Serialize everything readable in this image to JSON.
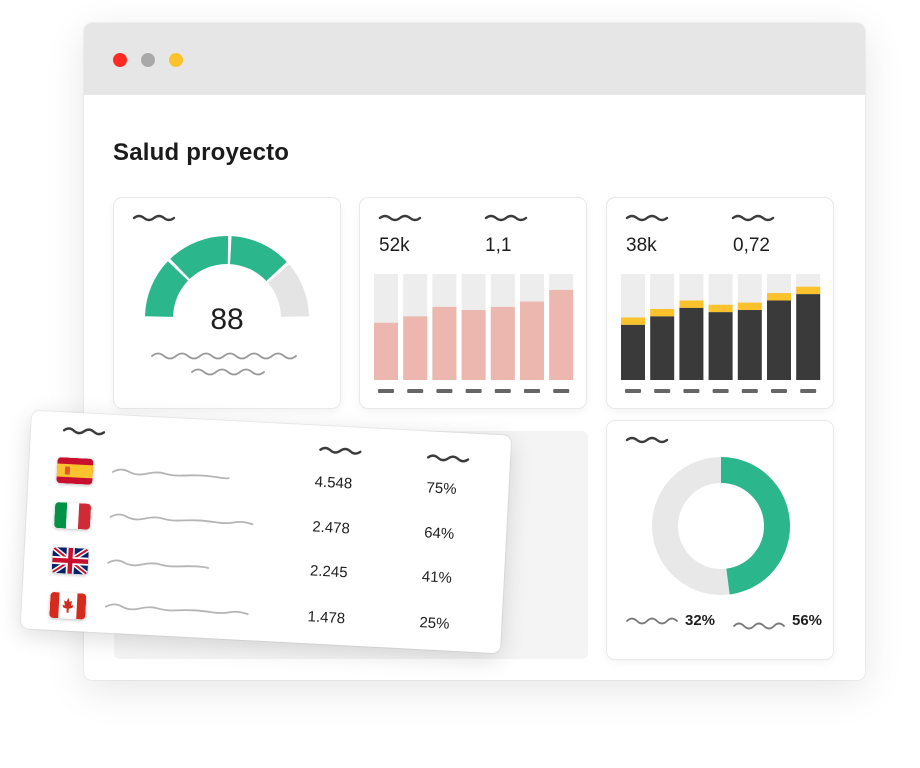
{
  "window": {
    "controls": {
      "close_color": "#ff2a22",
      "minimize_color": "#a9a9a9",
      "maximize_color": "#fcc22d"
    }
  },
  "page_title": "Salud proyecto",
  "gauge": {
    "value": "88",
    "score": 88,
    "colors": {
      "filled": "#2bb68c",
      "empty": "#e4e4e4"
    }
  },
  "bar_chart_1": {
    "stats": [
      "52k",
      "1,1"
    ],
    "fill_fractions": [
      0.54,
      0.6,
      0.69,
      0.66,
      0.69,
      0.74,
      0.85
    ],
    "colors": {
      "fill": "#ebb7ae",
      "track": "#ededed",
      "tick": "#666666"
    }
  },
  "bar_chart_2": {
    "stats": [
      "38k",
      "0,72"
    ],
    "dark_fractions": [
      0.52,
      0.6,
      0.68,
      0.64,
      0.66,
      0.75,
      0.81
    ],
    "yellow_fractions": [
      0.07,
      0.07,
      0.07,
      0.07,
      0.07,
      0.07,
      0.07
    ],
    "colors": {
      "dark": "#3a3a3a",
      "yellow": "#fcc22d",
      "track": "#ededed",
      "tick": "#666666"
    }
  },
  "donut": {
    "green_fraction": 0.48,
    "labels": [
      "32%",
      "56%"
    ],
    "colors": {
      "green": "#2bb68c",
      "gray": "#e8e8e8"
    }
  },
  "countries_table": {
    "rows": [
      {
        "flag": "spain-flag",
        "value": "4.548",
        "percent": "75%"
      },
      {
        "flag": "italy-flag",
        "value": "2.478",
        "percent": "64%"
      },
      {
        "flag": "uk-flag",
        "value": "2.245",
        "percent": "41%"
      },
      {
        "flag": "canada-flag",
        "value": "1.478",
        "percent": "25%"
      }
    ]
  }
}
